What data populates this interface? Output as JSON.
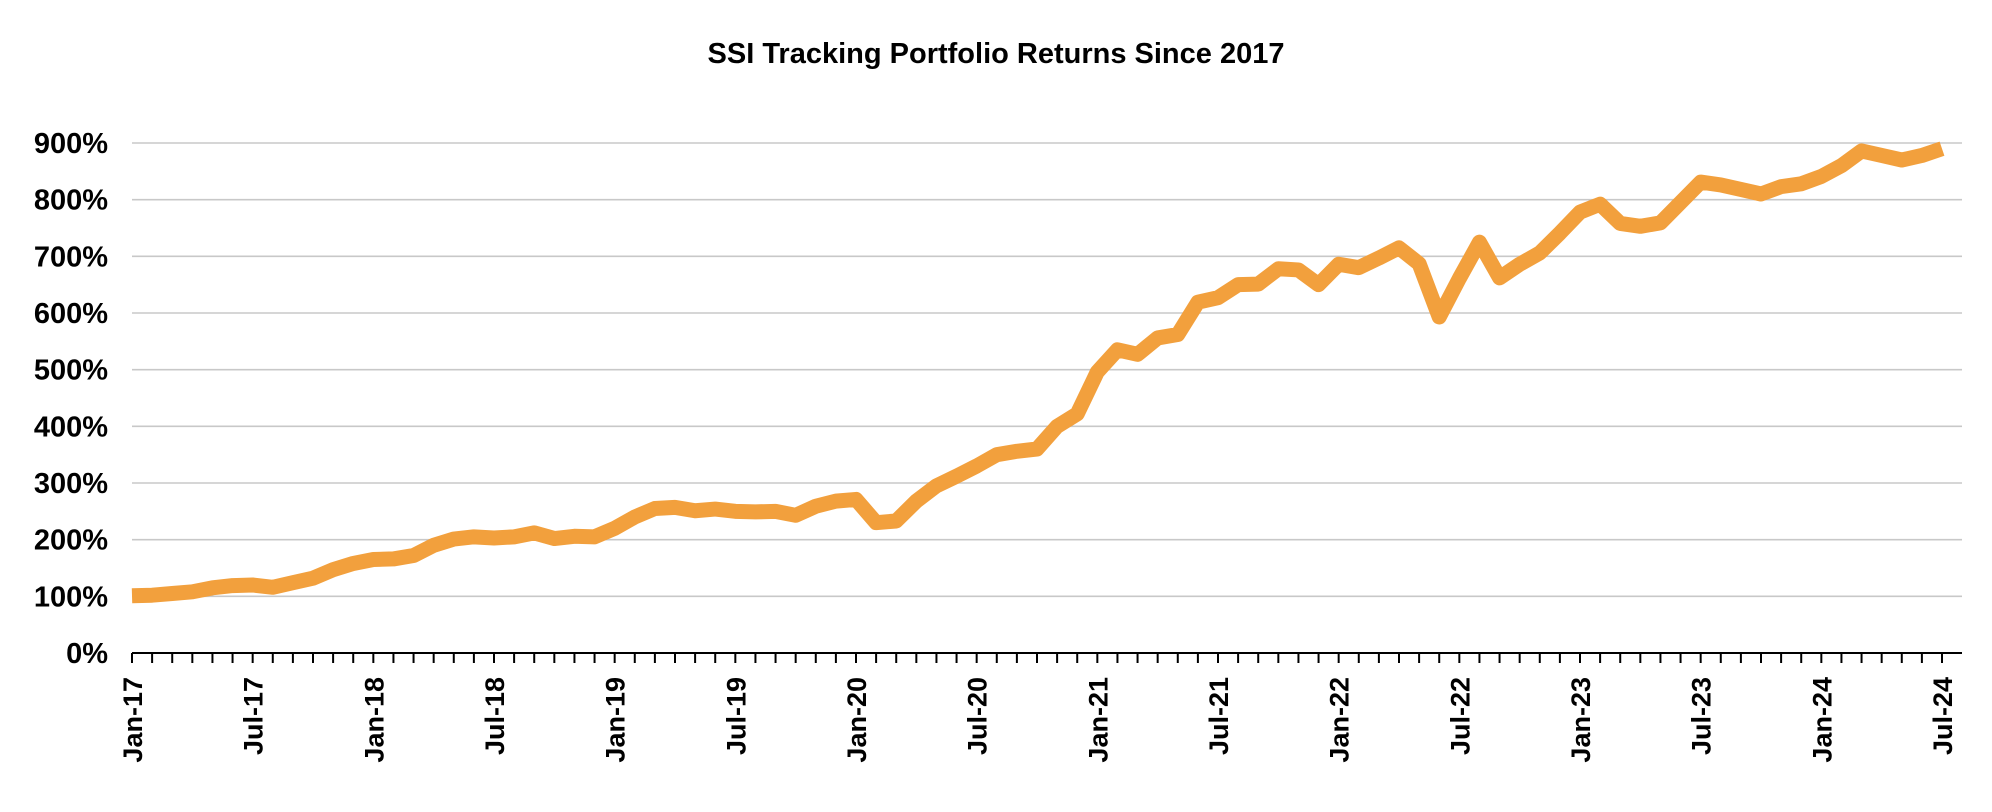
{
  "chart_data": {
    "type": "line",
    "title": "SSI Tracking Portfolio Returns Since 2017",
    "xlabel": "",
    "ylabel": "",
    "ylim": [
      0,
      900
    ],
    "yticks": [
      "0%",
      "100%",
      "200%",
      "300%",
      "400%",
      "500%",
      "600%",
      "700%",
      "800%",
      "900%"
    ],
    "grid": true,
    "legend": "none",
    "x_tick_labels": [
      "Jan-17",
      "Jul-17",
      "Jan-18",
      "Jul-18",
      "Jan-19",
      "Jul-19",
      "Jan-20",
      "Jul-20",
      "Jan-21",
      "Jul-21",
      "Jan-22",
      "Jul-22",
      "Jan-23",
      "Jul-23",
      "Jan-24",
      "Jul-24"
    ],
    "colors": {
      "line": "#F2A03D",
      "grid": "#C8C8C8",
      "axis": "#000000"
    },
    "series": [
      {
        "x": [
          "Jan-17",
          "Feb-17",
          "Mar-17",
          "Apr-17",
          "May-17",
          "Jun-17",
          "Jul-17",
          "Aug-17",
          "Sep-17",
          "Oct-17",
          "Nov-17",
          "Dec-17",
          "Jan-18",
          "Feb-18",
          "Mar-18",
          "Apr-18",
          "May-18",
          "Jun-18",
          "Jul-18",
          "Aug-18",
          "Sep-18",
          "Oct-18",
          "Nov-18",
          "Dec-18",
          "Jan-19",
          "Feb-19",
          "Mar-19",
          "Apr-19",
          "May-19",
          "Jun-19",
          "Jul-19",
          "Aug-19",
          "Sep-19",
          "Oct-19",
          "Nov-19",
          "Dec-19",
          "Jan-20",
          "Feb-20",
          "Mar-20",
          "Apr-20",
          "May-20",
          "Jun-20",
          "Jul-20",
          "Aug-20",
          "Sep-20",
          "Oct-20",
          "Nov-20",
          "Dec-20",
          "Jan-21",
          "Feb-21",
          "Mar-21",
          "Apr-21",
          "May-21",
          "Jun-21",
          "Jul-21",
          "Aug-21",
          "Sep-21",
          "Oct-21",
          "Nov-21",
          "Dec-21",
          "Jan-22",
          "Feb-22",
          "Mar-22",
          "Apr-22",
          "May-22",
          "Jun-22",
          "Jul-22",
          "Aug-22",
          "Sep-22",
          "Oct-22",
          "Nov-22",
          "Dec-22",
          "Jan-23",
          "Feb-23",
          "Mar-23",
          "Apr-23",
          "May-23",
          "Jun-23",
          "Jul-23",
          "Aug-23",
          "Sep-23",
          "Oct-23",
          "Nov-23",
          "Dec-23",
          "Jan-24",
          "Feb-24",
          "Mar-24",
          "Apr-24",
          "May-24",
          "Jun-24",
          "Jul-24"
        ],
        "values": [
          101,
          102,
          105,
          108,
          115,
          119,
          120,
          116,
          124,
          132,
          147,
          158,
          165,
          166,
          172,
          190,
          201,
          205,
          203,
          205,
          212,
          202,
          206,
          205,
          220,
          240,
          255,
          257,
          251,
          254,
          250,
          249,
          250,
          243,
          259,
          268,
          271,
          230,
          233,
          268,
          295,
          312,
          330,
          350,
          356,
          360,
          400,
          422,
          496,
          535,
          527,
          556,
          562,
          619,
          627,
          650,
          651,
          678,
          676,
          650,
          686,
          680,
          697,
          715,
          687,
          593,
          661,
          725,
          662,
          686,
          706,
          741,
          778,
          792,
          758,
          753,
          759,
          795,
          831,
          826,
          818,
          810,
          823,
          828,
          841,
          860,
          886,
          878,
          870,
          878,
          890
        ]
      }
    ]
  }
}
